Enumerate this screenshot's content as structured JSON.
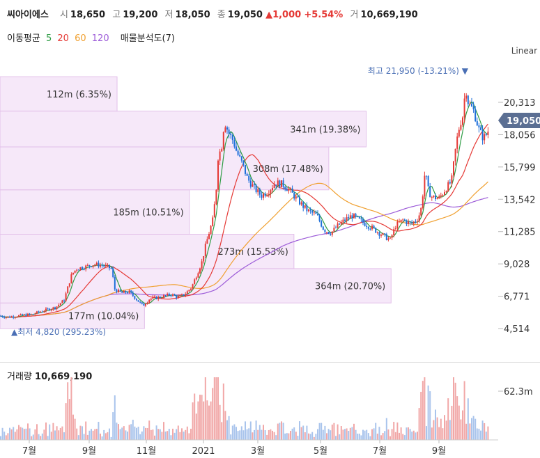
{
  "header": {
    "name": "씨아이에스",
    "open_label": "시",
    "open": "18,650",
    "high_label": "고",
    "high": "19,200",
    "low_label": "저",
    "low": "18,050",
    "close_label": "종",
    "close": "19,050",
    "change": "▲1,000",
    "change_pct": "+5.54%",
    "volume_label": "거",
    "volume": "10,669,190"
  },
  "indicators": {
    "title": "이동평균",
    "ma5": "5",
    "ma20": "20",
    "ma60": "60",
    "ma120": "120",
    "vp": "매물분석도(7)",
    "colors": {
      "ma5": "#2e9c44",
      "ma20": "#e53935",
      "ma60": "#f0a030",
      "ma120": "#9c5bd8"
    }
  },
  "scale_mode": "Linear",
  "current_price_tag": "19,050",
  "volume_panel": {
    "label": "거래량",
    "value": "10,669,190",
    "axis_tick": "62.3m"
  },
  "chart_data": {
    "type": "candlestick",
    "y_ticks": [
      "20,313",
      "18,056",
      "15,799",
      "13,542",
      "11,285",
      "9,028",
      "6,771",
      "4,514"
    ],
    "y_tick_values": [
      20313,
      18056,
      15799,
      13542,
      11285,
      9028,
      6771,
      4514
    ],
    "x_ticks": [
      "7월",
      "9월",
      "11월",
      "2021",
      "3월",
      "5월",
      "7월",
      "9월"
    ],
    "max_annotation": "최고 21,950 (-13.21%)",
    "min_annotation": "최저 4,820 (295.23%)",
    "volume_profile": [
      {
        "label": "177m (10.04%)",
        "low": 4514,
        "high": 6300,
        "share": 0.29
      },
      {
        "label": "364m (20.70%)",
        "low": 6300,
        "high": 8700,
        "share": 0.785
      },
      {
        "label": "273m (15.53%)",
        "low": 8700,
        "high": 11100,
        "share": 0.59
      },
      {
        "label": "185m (10.51%)",
        "low": 11100,
        "high": 14200,
        "share": 0.38
      },
      {
        "label": "308m (17.48%)",
        "low": 14200,
        "high": 17200,
        "share": 0.66
      },
      {
        "label": "341m (19.38%)",
        "low": 17200,
        "high": 19700,
        "share": 0.735
      },
      {
        "label": "112m (6.35%)",
        "low": 19700,
        "high": 22100,
        "share": 0.235
      }
    ],
    "path_anchors": [
      [
        0,
        5400
      ],
      [
        10,
        5300
      ],
      [
        25,
        5400
      ],
      [
        45,
        5500
      ],
      [
        65,
        5800
      ],
      [
        80,
        6000
      ],
      [
        92,
        6500
      ],
      [
        98,
        7500
      ],
      [
        103,
        8300
      ],
      [
        110,
        8700
      ],
      [
        120,
        8800
      ],
      [
        135,
        9000
      ],
      [
        150,
        8900
      ],
      [
        160,
        8700
      ],
      [
        165,
        7200
      ],
      [
        175,
        7000
      ],
      [
        185,
        7100
      ],
      [
        195,
        6600
      ],
      [
        205,
        6100
      ],
      [
        215,
        6600
      ],
      [
        230,
        6700
      ],
      [
        245,
        6900
      ],
      [
        255,
        6700
      ],
      [
        265,
        6900
      ],
      [
        275,
        7400
      ],
      [
        280,
        8000
      ],
      [
        285,
        8600
      ],
      [
        290,
        9200
      ],
      [
        295,
        10300
      ],
      [
        300,
        11200
      ],
      [
        305,
        12000
      ],
      [
        310,
        14000
      ],
      [
        313,
        16500
      ],
      [
        318,
        17200
      ],
      [
        322,
        19000
      ],
      [
        328,
        18200
      ],
      [
        335,
        17600
      ],
      [
        340,
        16800
      ],
      [
        348,
        16000
      ],
      [
        355,
        15000
      ],
      [
        365,
        14300
      ],
      [
        375,
        13800
      ],
      [
        385,
        14100
      ],
      [
        395,
        14700
      ],
      [
        405,
        14600
      ],
      [
        415,
        14200
      ],
      [
        425,
        13600
      ],
      [
        440,
        12800
      ],
      [
        455,
        12400
      ],
      [
        465,
        11400
      ],
      [
        475,
        11200
      ],
      [
        485,
        11700
      ],
      [
        495,
        12100
      ],
      [
        505,
        12400
      ],
      [
        515,
        12100
      ],
      [
        525,
        11800
      ],
      [
        535,
        11500
      ],
      [
        550,
        11000
      ],
      [
        560,
        10700
      ],
      [
        568,
        11700
      ],
      [
        578,
        12100
      ],
      [
        590,
        11800
      ],
      [
        600,
        12200
      ],
      [
        605,
        13000
      ],
      [
        610,
        15500
      ],
      [
        615,
        14100
      ],
      [
        620,
        13700
      ],
      [
        630,
        13600
      ],
      [
        640,
        14300
      ],
      [
        648,
        14800
      ],
      [
        655,
        17500
      ],
      [
        660,
        18800
      ],
      [
        665,
        19500
      ],
      [
        668,
        21500
      ],
      [
        672,
        20300
      ],
      [
        680,
        19700
      ],
      [
        688,
        18300
      ],
      [
        694,
        17800
      ],
      [
        700,
        18200
      ],
      [
        703,
        19050
      ]
    ]
  }
}
